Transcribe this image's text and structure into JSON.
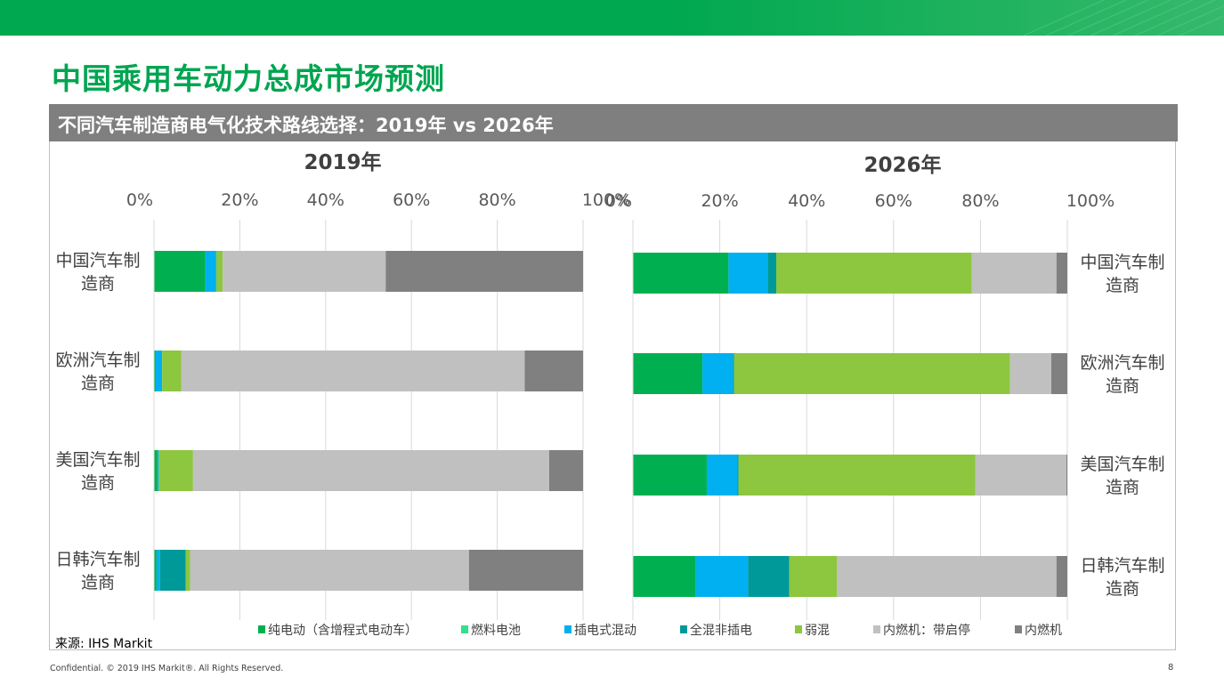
{
  "page_title": "中国乘用车动力总成市场预测",
  "subtitle": "不同汽车制造商电气化技术路线选择：2019年 vs 2026年",
  "source": "来源: IHS Markit",
  "footer": "Confidential. © 2019 IHS Markit®. All Rights Reserved.",
  "page_number": "8",
  "colors": {
    "brand_green": "#00a550",
    "subtitle_bg": "#7f7f7f"
  },
  "chart_data": [
    {
      "type": "bar",
      "orientation": "horizontal",
      "stacked": "percent",
      "title": "2019年",
      "categories": [
        "中国汽车制造商",
        "欧洲汽车制造商",
        "美国汽车制造商",
        "日韩汽车制造商"
      ],
      "xlim": [
        0,
        100
      ],
      "x_ticks": [
        "0%",
        "20%",
        "40%",
        "60%",
        "80%",
        "100%"
      ],
      "grid": true,
      "series": [
        {
          "name": "纯电动（含增程式电动车）",
          "color": "#00b050",
          "values": [
            12,
            0.4,
            0.8,
            0.6
          ]
        },
        {
          "name": "燃料电池",
          "color": "#33e08a",
          "values": [
            0,
            0,
            0,
            0
          ]
        },
        {
          "name": "插电式混动",
          "color": "#00b0f0",
          "values": [
            2.5,
            1.5,
            0.3,
            0.8
          ]
        },
        {
          "name": "全混非插电",
          "color": "#009999",
          "values": [
            0,
            0,
            0,
            6
          ]
        },
        {
          "name": "弱混",
          "color": "#8dc63f",
          "values": [
            1.5,
            4.5,
            8,
            1
          ]
        },
        {
          "name": "内燃机：带启停",
          "color": "#c0c0c0",
          "values": [
            38,
            80,
            83,
            65
          ]
        },
        {
          "name": "内燃机",
          "color": "#808080",
          "values": [
            46,
            13.6,
            7.9,
            26.6
          ]
        }
      ]
    },
    {
      "type": "bar",
      "orientation": "horizontal",
      "stacked": "percent",
      "title": "2026年",
      "categories": [
        "中国汽车制造商",
        "欧洲汽车制造商",
        "美国汽车制造商",
        "日韩汽车制造商"
      ],
      "xlim": [
        0,
        100
      ],
      "x_ticks": [
        "0%",
        "20%",
        "40%",
        "60%",
        "80%",
        "100%"
      ],
      "grid": true,
      "series": [
        {
          "name": "纯电动（含增程式电动车）",
          "color": "#00b050",
          "values": [
            22,
            16,
            17,
            14.5
          ]
        },
        {
          "name": "燃料电池",
          "color": "#33e08a",
          "values": [
            0,
            0,
            0,
            0
          ]
        },
        {
          "name": "插电式混动",
          "color": "#00b0f0",
          "values": [
            9,
            7,
            7,
            12
          ]
        },
        {
          "name": "全混非插电",
          "color": "#009999",
          "values": [
            2,
            0.3,
            0.3,
            9.5
          ]
        },
        {
          "name": "弱混",
          "color": "#8dc63f",
          "values": [
            45,
            63.5,
            54.5,
            11
          ]
        },
        {
          "name": "内燃机：带启停",
          "color": "#c0c0c0",
          "values": [
            19.5,
            9.5,
            21,
            50.5
          ]
        },
        {
          "name": "内燃机",
          "color": "#808080",
          "values": [
            2.5,
            3.7,
            0.2,
            2.5
          ]
        }
      ]
    }
  ],
  "legend": [
    "纯电动（含增程式电动车）",
    "燃料电池",
    "插电式混动",
    "全混非插电",
    "弱混",
    "内燃机：带启停",
    "内燃机"
  ]
}
